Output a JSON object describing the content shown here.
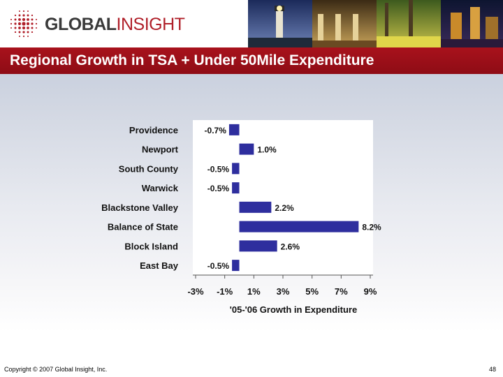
{
  "logo": {
    "word1": "GLOBAL",
    "word2": "INSIGHT"
  },
  "slide_title": "Regional Growth in TSA + Under 50Mile Expenditure",
  "footer": {
    "copyright": "Copyright © 2007 Global Insight, Inc.",
    "page_number": "48"
  },
  "colors": {
    "bar": "#2e2e9e",
    "title_bar": "#a8121c",
    "logo_red": "#b0202a"
  },
  "chart_data": {
    "type": "bar",
    "orientation": "horizontal",
    "categories": [
      "Providence",
      "Newport",
      "South County",
      "Warwick",
      "Blackstone Valley",
      "Balance of State",
      "Block Island",
      "East Bay"
    ],
    "values": [
      -0.7,
      1.0,
      -0.5,
      -0.5,
      2.2,
      8.2,
      2.6,
      -0.5
    ],
    "data_labels": [
      "-0.7%",
      "1.0%",
      "-0.5%",
      "-0.5%",
      "2.2%",
      "8.2%",
      "2.6%",
      "-0.5%"
    ],
    "xlabel": "'05-'06 Growth in Expenditure",
    "ylabel": "",
    "xlim": [
      -3,
      9
    ],
    "xticks": [
      -3,
      -1,
      1,
      3,
      5,
      7,
      9
    ],
    "xtick_labels": [
      "-3%",
      "-1%",
      "1%",
      "3%",
      "5%",
      "7%",
      "9%"
    ],
    "grid": false,
    "legend": "none"
  }
}
